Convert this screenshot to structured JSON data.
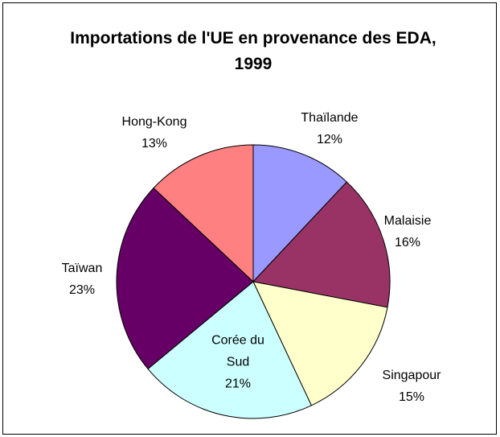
{
  "chart_data": {
    "type": "pie",
    "title": "Importations de l'UE en provenance des EDA, 1999",
    "categories": [
      "Thaïlande",
      "Malaisie",
      "Singapour",
      "Corée du Sud",
      "Taïwan",
      "Hong-Kong"
    ],
    "values": [
      12,
      16,
      15,
      21,
      23,
      13
    ],
    "value_labels": [
      "12%",
      "16%",
      "15%",
      "21%",
      "23%",
      "13%"
    ],
    "colors": [
      "#9999ff",
      "#993366",
      "#ffffcc",
      "#ccffff",
      "#660066",
      "#ff8080"
    ]
  }
}
